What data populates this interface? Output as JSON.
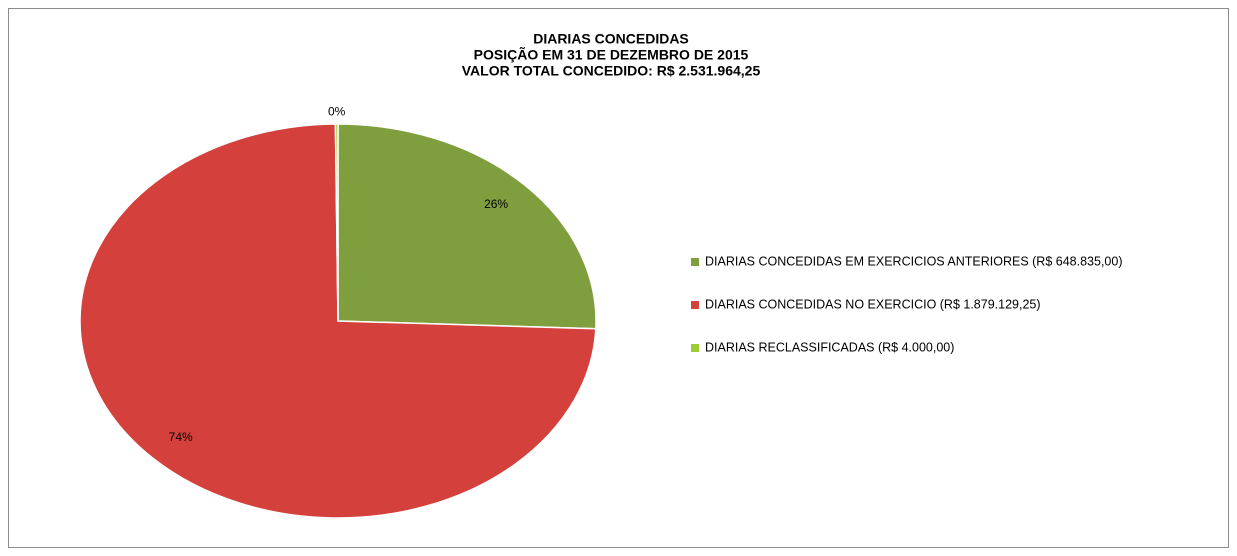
{
  "chart_data": {
    "type": "pie",
    "title": [
      "DIARIAS CONCEDIDAS",
      "POSIÇÃO EM 31 DE DEZEMBRO DE 2015",
      "VALOR TOTAL CONCEDIDO: R$ 2.531.964,25"
    ],
    "categories": [
      "DIARIAS CONCEDIDAS EM EXERCICIOS  ANTERIORES (R$ 648.835,00)",
      "DIARIAS CONCEDIDAS NO EXERCICIO (R$ 1.879.129,25)",
      "DIARIAS RECLASSIFICADAS (R$ 4.000,00)"
    ],
    "values": [
      25.63,
      74.22,
      0.16
    ],
    "value_labels": [
      "26%",
      "74%",
      "0%"
    ],
    "colors": [
      "#7f9f3f",
      "#d4403c",
      "#9acd32"
    ],
    "legend": "right"
  }
}
